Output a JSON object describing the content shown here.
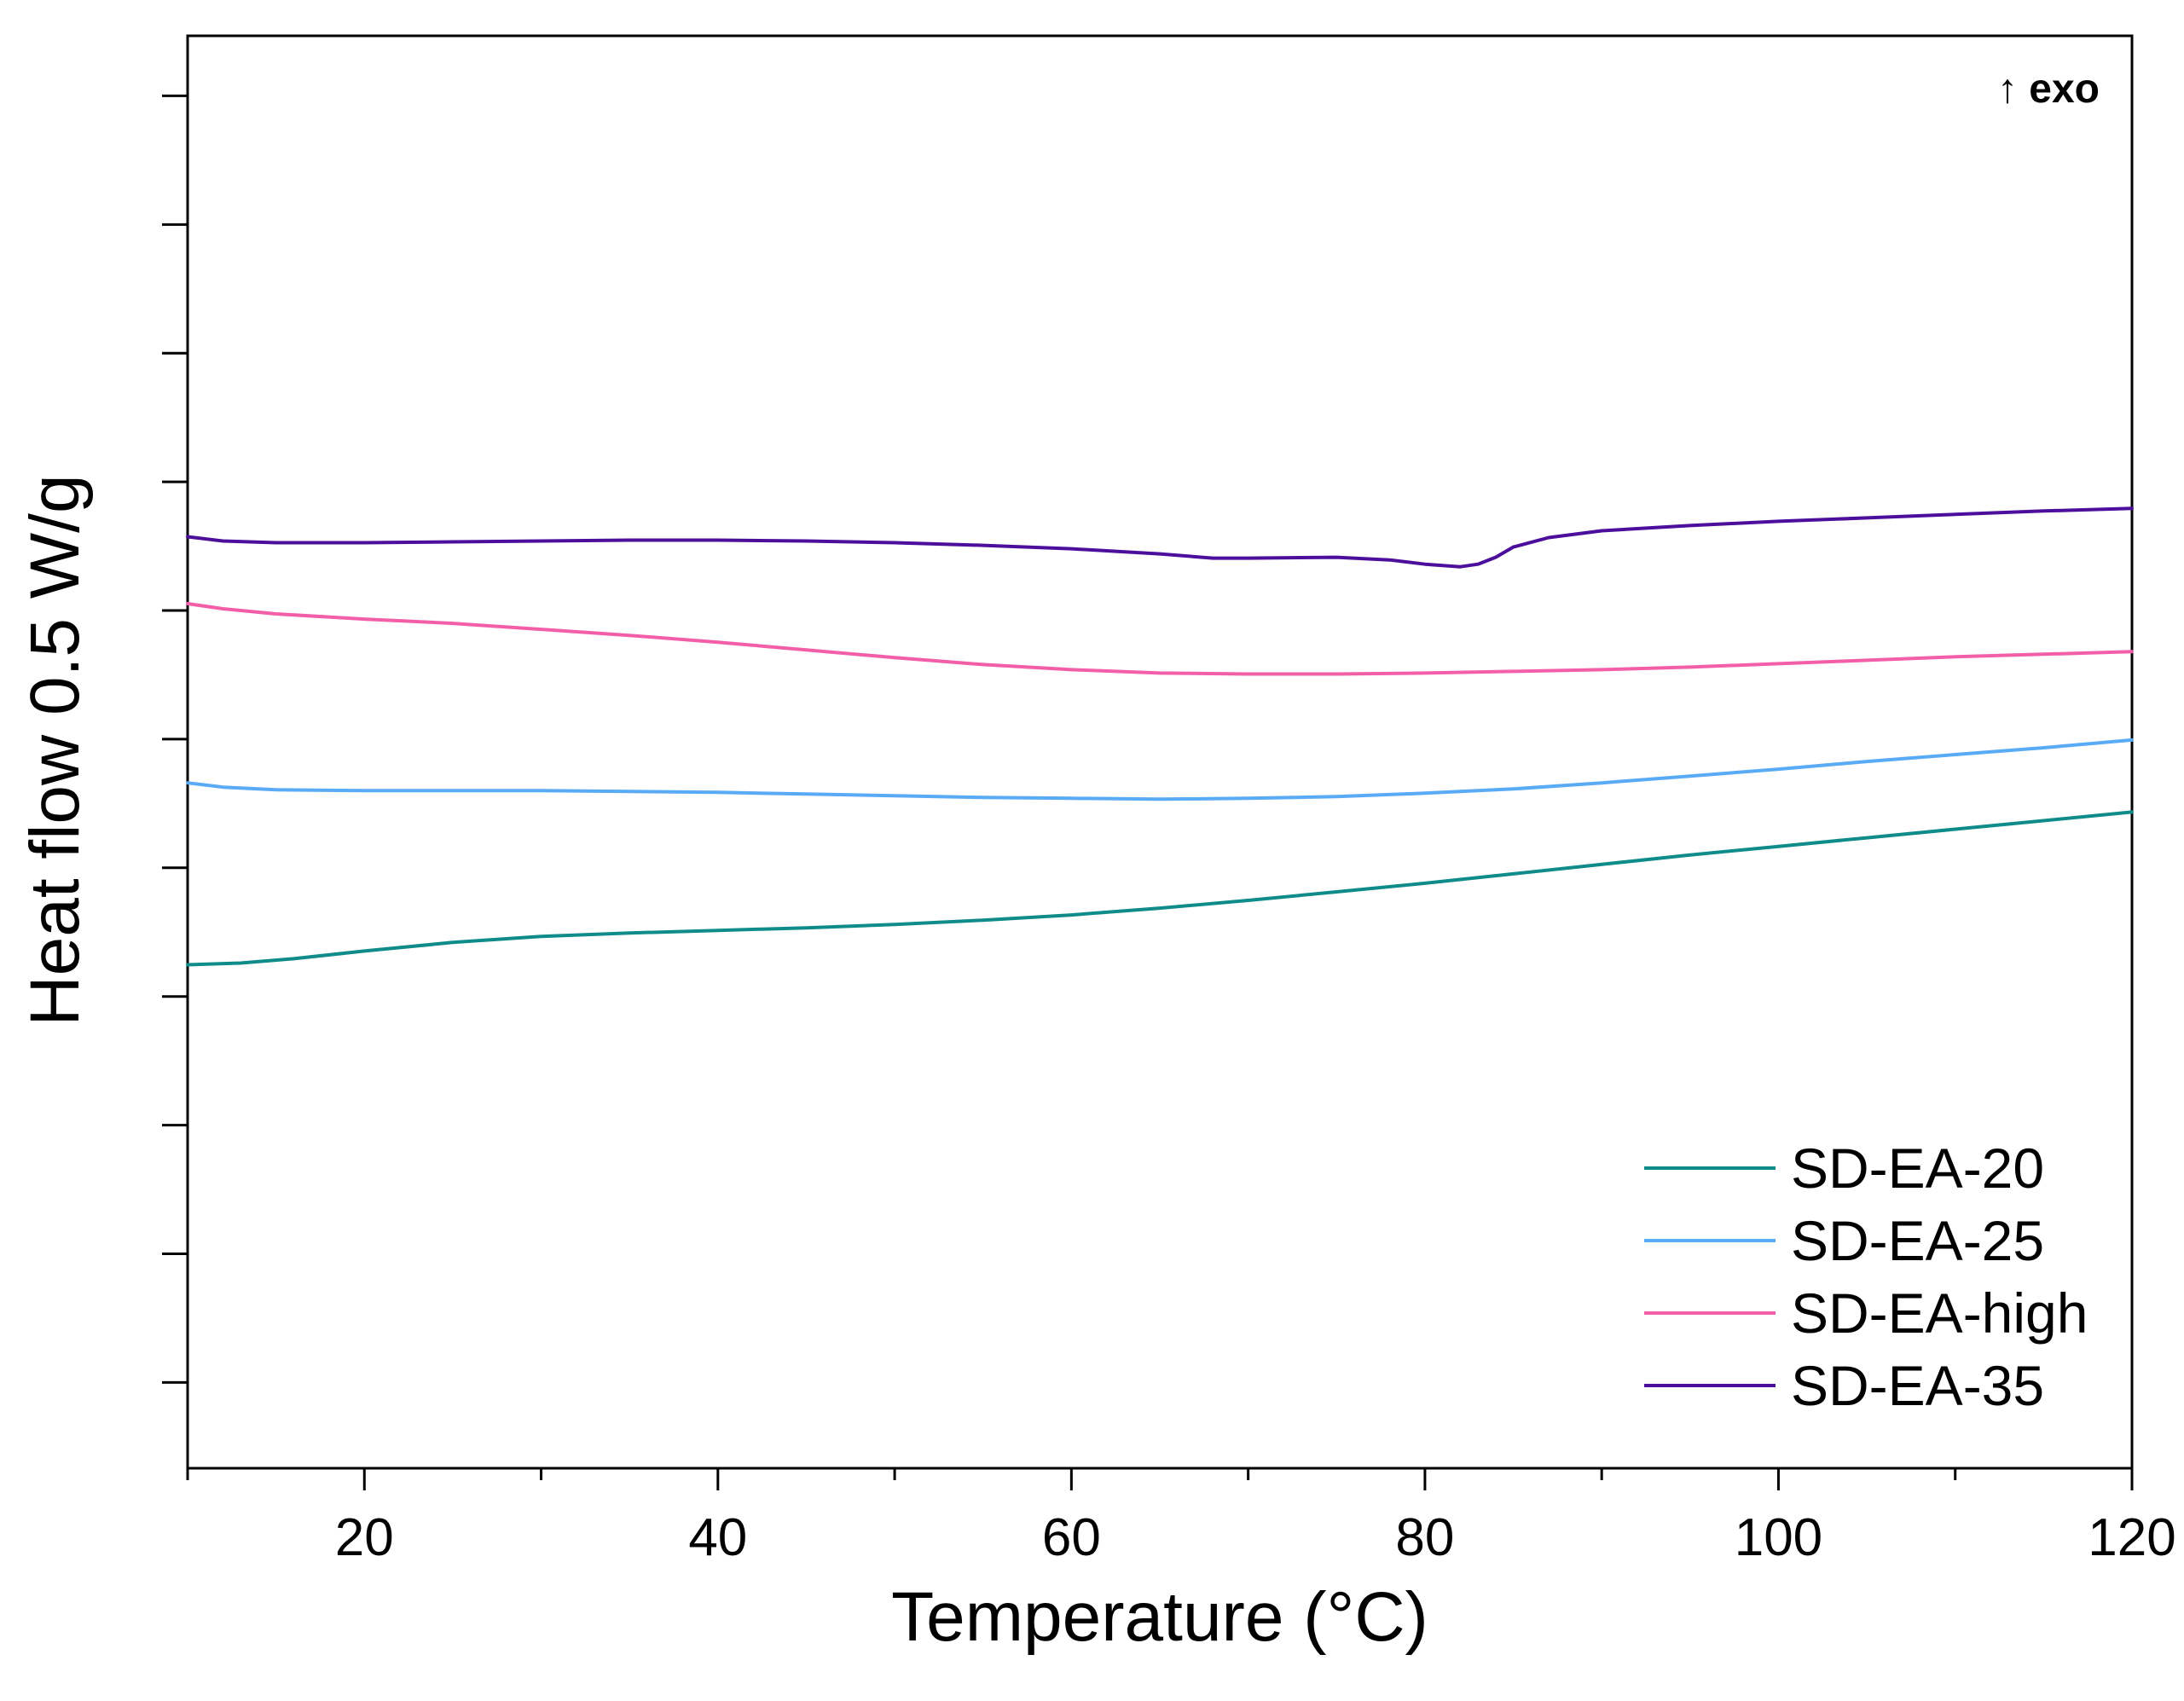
{
  "chart_data": {
    "type": "line",
    "title": "",
    "xlabel": "Temperature (°C)",
    "ylabel": "Heat flow 0.5 W/g",
    "annotation": "↑ exo",
    "xlim": [
      10,
      120
    ],
    "ylim": [
      -0.7,
      0.97
    ],
    "x_ticks": [
      20,
      40,
      60,
      80,
      100,
      120
    ],
    "x_minor_ticks": [
      10,
      30,
      50,
      70,
      90,
      110
    ],
    "y_ticks": [
      0.9,
      0.75,
      0.6,
      0.45,
      0.3,
      0.15,
      0.0,
      -0.15,
      -0.3,
      -0.45,
      -0.6
    ],
    "y_tick_labels_shown": false,
    "grid": false,
    "legend_position": "bottom-right",
    "series": [
      {
        "name": "SD-EA-20",
        "color": "#0f8c8a",
        "x": [
          10,
          13,
          16,
          20,
          25,
          30,
          35,
          40,
          45,
          50,
          55,
          60,
          65,
          70,
          75,
          80,
          85,
          90,
          95,
          100,
          105,
          110,
          115,
          120
        ],
        "y": [
          -0.113,
          -0.111,
          -0.106,
          -0.097,
          -0.087,
          -0.08,
          -0.076,
          -0.073,
          -0.07,
          -0.066,
          -0.061,
          -0.055,
          -0.047,
          -0.038,
          -0.028,
          -0.018,
          -0.007,
          0.004,
          0.015,
          0.025,
          0.035,
          0.045,
          0.055,
          0.065
        ]
      },
      {
        "name": "SD-EA-25",
        "color": "#5aabf5",
        "x": [
          10,
          12,
          15,
          20,
          25,
          30,
          35,
          40,
          45,
          50,
          55,
          60,
          65,
          70,
          75,
          80,
          85,
          90,
          95,
          100,
          105,
          110,
          115,
          120
        ],
        "y": [
          0.099,
          0.094,
          0.091,
          0.09,
          0.09,
          0.09,
          0.089,
          0.088,
          0.086,
          0.084,
          0.082,
          0.081,
          0.08,
          0.081,
          0.083,
          0.087,
          0.092,
          0.099,
          0.107,
          0.115,
          0.124,
          0.132,
          0.14,
          0.149
        ]
      },
      {
        "name": "SD-EA-high",
        "color": "#f25fa8",
        "x": [
          10,
          12,
          15,
          20,
          25,
          30,
          35,
          40,
          45,
          50,
          55,
          60,
          65,
          70,
          75,
          80,
          85,
          90,
          95,
          100,
          105,
          110,
          115,
          120
        ],
        "y": [
          0.308,
          0.302,
          0.296,
          0.29,
          0.285,
          0.278,
          0.271,
          0.263,
          0.254,
          0.245,
          0.237,
          0.231,
          0.227,
          0.226,
          0.226,
          0.227,
          0.229,
          0.231,
          0.234,
          0.238,
          0.242,
          0.246,
          0.249,
          0.252
        ]
      },
      {
        "name": "SD-EA-35",
        "color": "#4b0f9c",
        "x": [
          10,
          12,
          15,
          20,
          25,
          30,
          35,
          40,
          45,
          50,
          55,
          60,
          65,
          68,
          70,
          75,
          78,
          80,
          82,
          83,
          84,
          85,
          87,
          90,
          95,
          100,
          105,
          110,
          115,
          120
        ],
        "y": [
          0.386,
          0.381,
          0.379,
          0.379,
          0.38,
          0.381,
          0.382,
          0.382,
          0.381,
          0.379,
          0.376,
          0.372,
          0.366,
          0.361,
          0.361,
          0.362,
          0.359,
          0.354,
          0.351,
          0.354,
          0.362,
          0.374,
          0.385,
          0.393,
          0.399,
          0.404,
          0.408,
          0.412,
          0.416,
          0.419
        ]
      }
    ]
  }
}
